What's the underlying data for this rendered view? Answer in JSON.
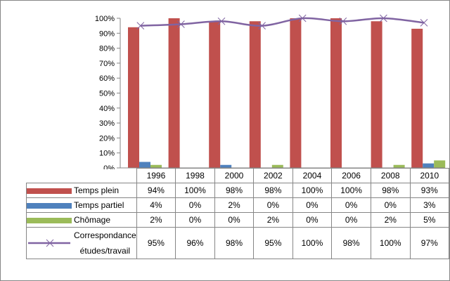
{
  "chart_data": {
    "type": "bar",
    "categories": [
      "1996",
      "1998",
      "2000",
      "2002",
      "2004",
      "2006",
      "2008",
      "2010"
    ],
    "series": [
      {
        "name": "Temps plein",
        "kind": "bar",
        "color": "#C0504D",
        "values": [
          94,
          100,
          98,
          98,
          100,
          100,
          98,
          93
        ],
        "labels": [
          "94%",
          "100%",
          "98%",
          "98%",
          "100%",
          "100%",
          "98%",
          "93%"
        ]
      },
      {
        "name": "Temps partiel",
        "kind": "bar",
        "color": "#4F81BD",
        "values": [
          4,
          0,
          2,
          0,
          0,
          0,
          0,
          3
        ],
        "labels": [
          "4%",
          "0%",
          "2%",
          "0%",
          "0%",
          "0%",
          "0%",
          "3%"
        ]
      },
      {
        "name": "Chômage",
        "kind": "bar",
        "color": "#9BBB59",
        "values": [
          2,
          0,
          0,
          2,
          0,
          0,
          2,
          5
        ],
        "labels": [
          "2%",
          "0%",
          "0%",
          "2%",
          "0%",
          "0%",
          "2%",
          "5%"
        ]
      },
      {
        "name": "Correspondance études/travail",
        "name_lines": [
          "Correspondance",
          "études/travail"
        ],
        "kind": "line",
        "color": "#8064A2",
        "values": [
          95,
          96,
          98,
          95,
          100,
          98,
          100,
          97
        ],
        "labels": [
          "95%",
          "96%",
          "98%",
          "95%",
          "100%",
          "98%",
          "100%",
          "97%"
        ]
      }
    ],
    "ylim": [
      0,
      100
    ],
    "yticks": [
      "0%",
      "10%",
      "20%",
      "30%",
      "40%",
      "50%",
      "60%",
      "70%",
      "80%",
      "90%",
      "100%"
    ],
    "legend": "data-table-bottom"
  }
}
